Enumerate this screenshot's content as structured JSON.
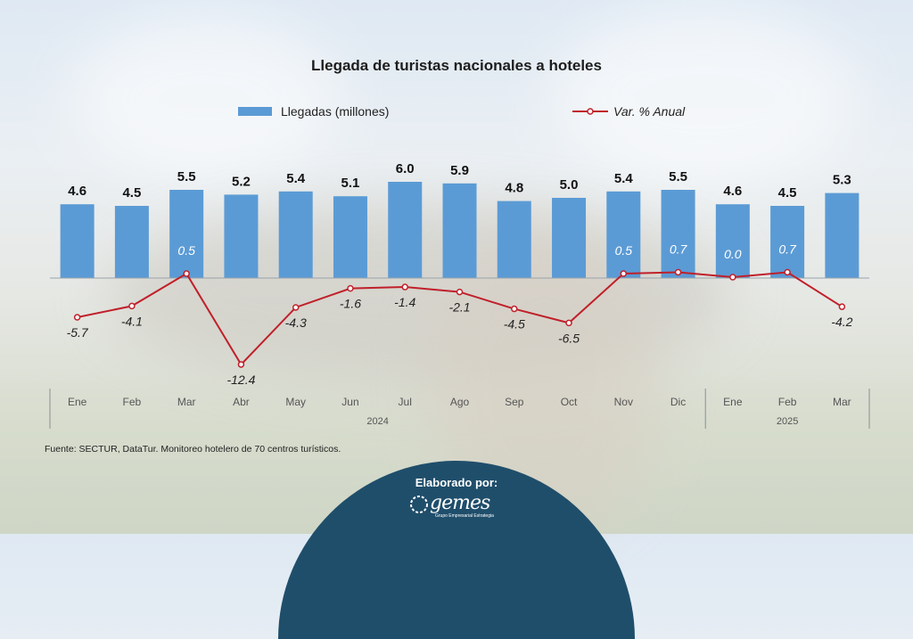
{
  "title": "Llegada de turistas nacionales a hoteles",
  "legend": {
    "bar_label": "Llegadas (millones)",
    "line_label": "Var. % Anual"
  },
  "source": "Fuente: SECTUR, DataTur. Monitoreo hotelero de 70 centros turísticos.",
  "footer": {
    "label": "Elaborado por:",
    "logo_text": "gemes",
    "logo_subtext": "Grupo Empresarial Estrategia"
  },
  "colors": {
    "bar": "#5b9bd5",
    "line": "#c0202a",
    "footer": "#1f4e6b"
  },
  "chart_data": {
    "type": "bar",
    "categories": [
      "Ene",
      "Feb",
      "Mar",
      "Abr",
      "May",
      "Jun",
      "Jul",
      "Ago",
      "Sep",
      "Oct",
      "Nov",
      "Dic",
      "Ene",
      "Feb",
      "Mar"
    ],
    "year_groups": [
      {
        "label": "2024",
        "start": 0,
        "end": 11
      },
      {
        "label": "2025",
        "start": 12,
        "end": 14
      }
    ],
    "series": [
      {
        "name": "Llegadas (millones)",
        "type": "bar",
        "values": [
          4.6,
          4.5,
          5.5,
          5.2,
          5.4,
          5.1,
          6.0,
          5.9,
          4.8,
          5.0,
          5.4,
          5.5,
          4.6,
          4.5,
          5.3
        ],
        "labels": [
          "4.6",
          "4.5",
          "5.5",
          "5.2",
          "5.4",
          "5.1",
          "6.0",
          "5.9",
          "4.8",
          "5.0",
          "5.4",
          "5.5",
          "4.6",
          "4.5",
          "5.3"
        ]
      },
      {
        "name": "Var. % Anual",
        "type": "line",
        "values": [
          -5.7,
          -4.1,
          0.5,
          -12.4,
          -4.3,
          -1.6,
          -1.4,
          -2.1,
          -4.5,
          -6.5,
          0.5,
          0.7,
          0.0,
          0.7,
          -4.2
        ],
        "labels": [
          "-5.7",
          "-4.1",
          "0.5",
          "-12.4",
          "-4.3",
          "-1.6",
          "-1.4",
          "-2.1",
          "-4.5",
          "-6.5",
          "0.5",
          "0.7",
          "0.0",
          "0.7",
          "-4.2"
        ]
      }
    ]
  }
}
